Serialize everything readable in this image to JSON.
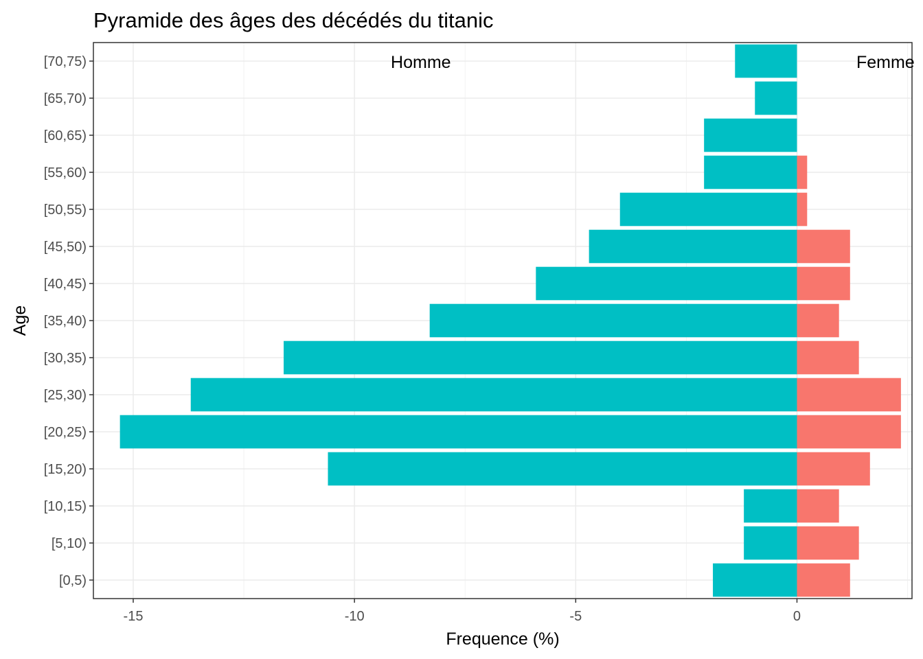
{
  "chart_data": {
    "type": "bar",
    "orientation": "horizontal",
    "title": "Pyramide des âges des décédés du titanic",
    "xlabel": "Frequence (%)",
    "ylabel": "Age",
    "xlim": [
      -15.9,
      2.6
    ],
    "xticks": [
      -15,
      -10,
      -5,
      0
    ],
    "xtick_labels": [
      "-15",
      "-10",
      "-5",
      "0"
    ],
    "categories": [
      "[0,5)",
      "[5,10)",
      "[10,15)",
      "[15,20)",
      "[20,25)",
      "[25,30)",
      "[30,35)",
      "[35,40)",
      "[40,45)",
      "[45,50)",
      "[50,55)",
      "[55,60)",
      "[60,65)",
      "[65,70)",
      "[70,75)"
    ],
    "series": [
      {
        "name": "Homme",
        "color": "#00BFC4",
        "values": [
          -1.9,
          -1.2,
          -1.2,
          -10.6,
          -15.3,
          -13.7,
          -11.6,
          -8.3,
          -5.9,
          -4.7,
          -4.0,
          -2.1,
          -2.1,
          -0.95,
          -1.4
        ]
      },
      {
        "name": "Femme",
        "color": "#F8766D",
        "values": [
          1.2,
          1.4,
          0.95,
          1.65,
          2.35,
          2.35,
          1.4,
          0.95,
          1.2,
          1.2,
          0.23,
          0.23,
          0,
          0,
          0
        ]
      }
    ],
    "annotations": [
      "Homme",
      "Femme"
    ],
    "grid": true,
    "legend": "none"
  }
}
